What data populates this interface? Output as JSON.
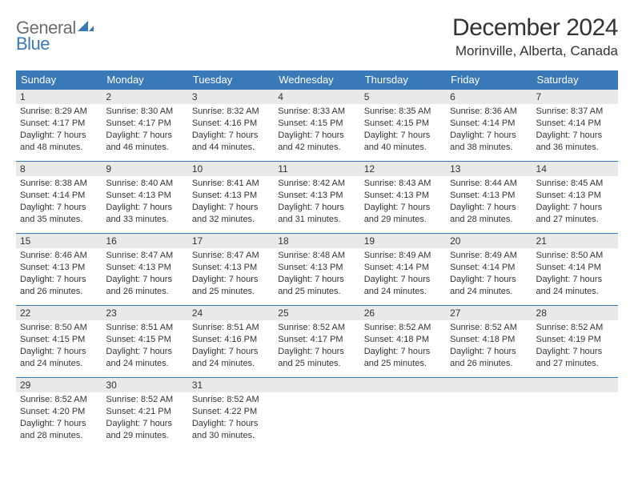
{
  "logo": {
    "part1": "General",
    "part2": "Blue"
  },
  "title": "December 2024",
  "location": "Morinville, Alberta, Canada",
  "colors": {
    "header_bg": "#3a79b7",
    "header_text": "#ffffff",
    "daynum_bg": "#e9e9e9",
    "text": "#333333",
    "row_border": "#3a79b7",
    "logo_gray": "#6d6d6d",
    "logo_blue": "#3a79b7"
  },
  "weekdays": [
    "Sunday",
    "Monday",
    "Tuesday",
    "Wednesday",
    "Thursday",
    "Friday",
    "Saturday"
  ],
  "weeks": [
    [
      {
        "n": "1",
        "sr": "Sunrise: 8:29 AM",
        "ss": "Sunset: 4:17 PM",
        "d1": "Daylight: 7 hours",
        "d2": "and 48 minutes."
      },
      {
        "n": "2",
        "sr": "Sunrise: 8:30 AM",
        "ss": "Sunset: 4:17 PM",
        "d1": "Daylight: 7 hours",
        "d2": "and 46 minutes."
      },
      {
        "n": "3",
        "sr": "Sunrise: 8:32 AM",
        "ss": "Sunset: 4:16 PM",
        "d1": "Daylight: 7 hours",
        "d2": "and 44 minutes."
      },
      {
        "n": "4",
        "sr": "Sunrise: 8:33 AM",
        "ss": "Sunset: 4:15 PM",
        "d1": "Daylight: 7 hours",
        "d2": "and 42 minutes."
      },
      {
        "n": "5",
        "sr": "Sunrise: 8:35 AM",
        "ss": "Sunset: 4:15 PM",
        "d1": "Daylight: 7 hours",
        "d2": "and 40 minutes."
      },
      {
        "n": "6",
        "sr": "Sunrise: 8:36 AM",
        "ss": "Sunset: 4:14 PM",
        "d1": "Daylight: 7 hours",
        "d2": "and 38 minutes."
      },
      {
        "n": "7",
        "sr": "Sunrise: 8:37 AM",
        "ss": "Sunset: 4:14 PM",
        "d1": "Daylight: 7 hours",
        "d2": "and 36 minutes."
      }
    ],
    [
      {
        "n": "8",
        "sr": "Sunrise: 8:38 AM",
        "ss": "Sunset: 4:14 PM",
        "d1": "Daylight: 7 hours",
        "d2": "and 35 minutes."
      },
      {
        "n": "9",
        "sr": "Sunrise: 8:40 AM",
        "ss": "Sunset: 4:13 PM",
        "d1": "Daylight: 7 hours",
        "d2": "and 33 minutes."
      },
      {
        "n": "10",
        "sr": "Sunrise: 8:41 AM",
        "ss": "Sunset: 4:13 PM",
        "d1": "Daylight: 7 hours",
        "d2": "and 32 minutes."
      },
      {
        "n": "11",
        "sr": "Sunrise: 8:42 AM",
        "ss": "Sunset: 4:13 PM",
        "d1": "Daylight: 7 hours",
        "d2": "and 31 minutes."
      },
      {
        "n": "12",
        "sr": "Sunrise: 8:43 AM",
        "ss": "Sunset: 4:13 PM",
        "d1": "Daylight: 7 hours",
        "d2": "and 29 minutes."
      },
      {
        "n": "13",
        "sr": "Sunrise: 8:44 AM",
        "ss": "Sunset: 4:13 PM",
        "d1": "Daylight: 7 hours",
        "d2": "and 28 minutes."
      },
      {
        "n": "14",
        "sr": "Sunrise: 8:45 AM",
        "ss": "Sunset: 4:13 PM",
        "d1": "Daylight: 7 hours",
        "d2": "and 27 minutes."
      }
    ],
    [
      {
        "n": "15",
        "sr": "Sunrise: 8:46 AM",
        "ss": "Sunset: 4:13 PM",
        "d1": "Daylight: 7 hours",
        "d2": "and 26 minutes."
      },
      {
        "n": "16",
        "sr": "Sunrise: 8:47 AM",
        "ss": "Sunset: 4:13 PM",
        "d1": "Daylight: 7 hours",
        "d2": "and 26 minutes."
      },
      {
        "n": "17",
        "sr": "Sunrise: 8:47 AM",
        "ss": "Sunset: 4:13 PM",
        "d1": "Daylight: 7 hours",
        "d2": "and 25 minutes."
      },
      {
        "n": "18",
        "sr": "Sunrise: 8:48 AM",
        "ss": "Sunset: 4:13 PM",
        "d1": "Daylight: 7 hours",
        "d2": "and 25 minutes."
      },
      {
        "n": "19",
        "sr": "Sunrise: 8:49 AM",
        "ss": "Sunset: 4:14 PM",
        "d1": "Daylight: 7 hours",
        "d2": "and 24 minutes."
      },
      {
        "n": "20",
        "sr": "Sunrise: 8:49 AM",
        "ss": "Sunset: 4:14 PM",
        "d1": "Daylight: 7 hours",
        "d2": "and 24 minutes."
      },
      {
        "n": "21",
        "sr": "Sunrise: 8:50 AM",
        "ss": "Sunset: 4:14 PM",
        "d1": "Daylight: 7 hours",
        "d2": "and 24 minutes."
      }
    ],
    [
      {
        "n": "22",
        "sr": "Sunrise: 8:50 AM",
        "ss": "Sunset: 4:15 PM",
        "d1": "Daylight: 7 hours",
        "d2": "and 24 minutes."
      },
      {
        "n": "23",
        "sr": "Sunrise: 8:51 AM",
        "ss": "Sunset: 4:15 PM",
        "d1": "Daylight: 7 hours",
        "d2": "and 24 minutes."
      },
      {
        "n": "24",
        "sr": "Sunrise: 8:51 AM",
        "ss": "Sunset: 4:16 PM",
        "d1": "Daylight: 7 hours",
        "d2": "and 24 minutes."
      },
      {
        "n": "25",
        "sr": "Sunrise: 8:52 AM",
        "ss": "Sunset: 4:17 PM",
        "d1": "Daylight: 7 hours",
        "d2": "and 25 minutes."
      },
      {
        "n": "26",
        "sr": "Sunrise: 8:52 AM",
        "ss": "Sunset: 4:18 PM",
        "d1": "Daylight: 7 hours",
        "d2": "and 25 minutes."
      },
      {
        "n": "27",
        "sr": "Sunrise: 8:52 AM",
        "ss": "Sunset: 4:18 PM",
        "d1": "Daylight: 7 hours",
        "d2": "and 26 minutes."
      },
      {
        "n": "28",
        "sr": "Sunrise: 8:52 AM",
        "ss": "Sunset: 4:19 PM",
        "d1": "Daylight: 7 hours",
        "d2": "and 27 minutes."
      }
    ],
    [
      {
        "n": "29",
        "sr": "Sunrise: 8:52 AM",
        "ss": "Sunset: 4:20 PM",
        "d1": "Daylight: 7 hours",
        "d2": "and 28 minutes."
      },
      {
        "n": "30",
        "sr": "Sunrise: 8:52 AM",
        "ss": "Sunset: 4:21 PM",
        "d1": "Daylight: 7 hours",
        "d2": "and 29 minutes."
      },
      {
        "n": "31",
        "sr": "Sunrise: 8:52 AM",
        "ss": "Sunset: 4:22 PM",
        "d1": "Daylight: 7 hours",
        "d2": "and 30 minutes."
      },
      null,
      null,
      null,
      null
    ]
  ]
}
